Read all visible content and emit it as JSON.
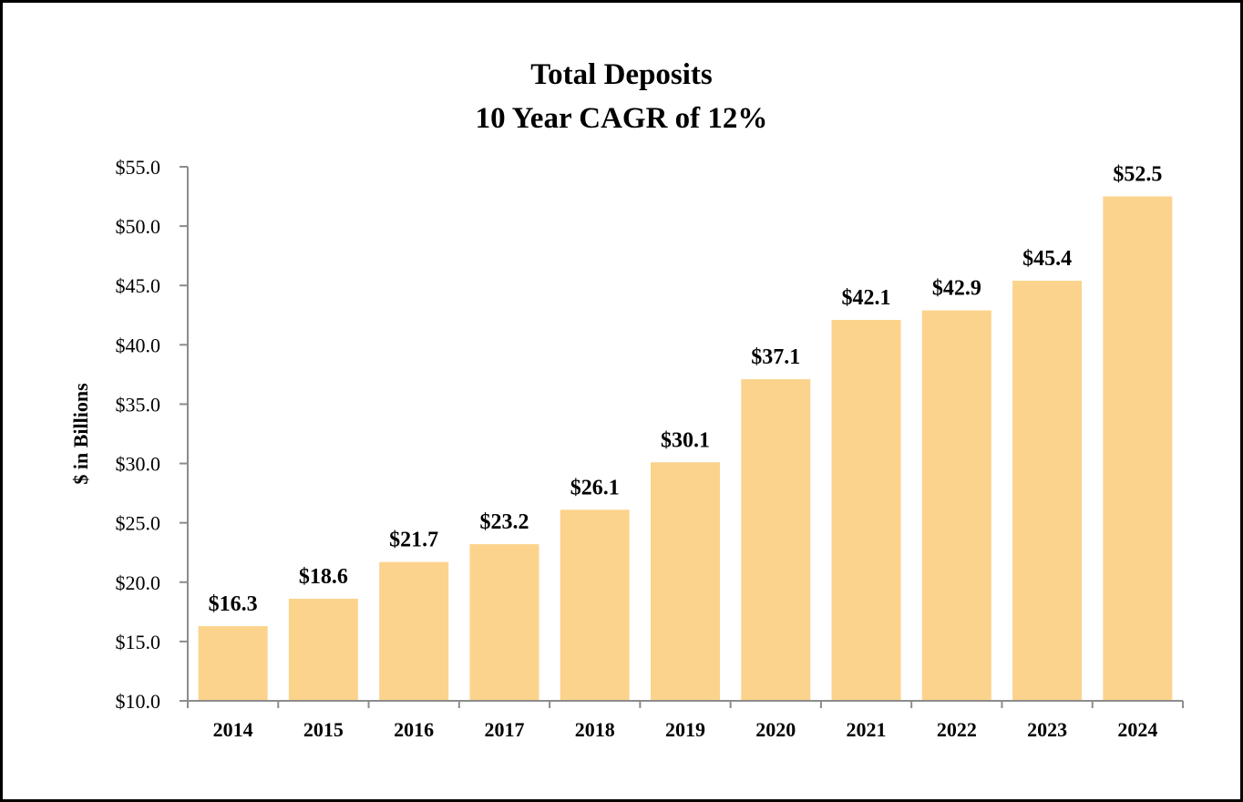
{
  "chart_data": {
    "type": "bar",
    "title": [
      "Total Deposits",
      "10 Year CAGR of 12%"
    ],
    "xlabel": "",
    "ylabel": "$ in Billions",
    "ylim": [
      10,
      55
    ],
    "yticks": [
      10,
      15,
      20,
      25,
      30,
      35,
      40,
      45,
      50,
      55
    ],
    "ytick_labels": [
      "$10.0",
      "$15.0",
      "$20.0",
      "$25.0",
      "$30.0",
      "$35.0",
      "$40.0",
      "$45.0",
      "$50.0",
      "$55.0"
    ],
    "categories": [
      "2014",
      "2015",
      "2016",
      "2017",
      "2018",
      "2019",
      "2020",
      "2021",
      "2022",
      "2023",
      "2024"
    ],
    "values": [
      16.3,
      18.6,
      21.7,
      23.2,
      26.1,
      30.1,
      37.1,
      42.1,
      42.9,
      45.4,
      52.5
    ],
    "value_labels": [
      "$16.3",
      "$18.6",
      "$21.7",
      "$23.2",
      "$26.1",
      "$30.1",
      "$37.1",
      "$42.1",
      "$42.9",
      "$45.4",
      "$52.5"
    ],
    "grid": false,
    "legend": "none",
    "bar_color": "#FCD38C",
    "axis_color": "#8C8C8C"
  }
}
